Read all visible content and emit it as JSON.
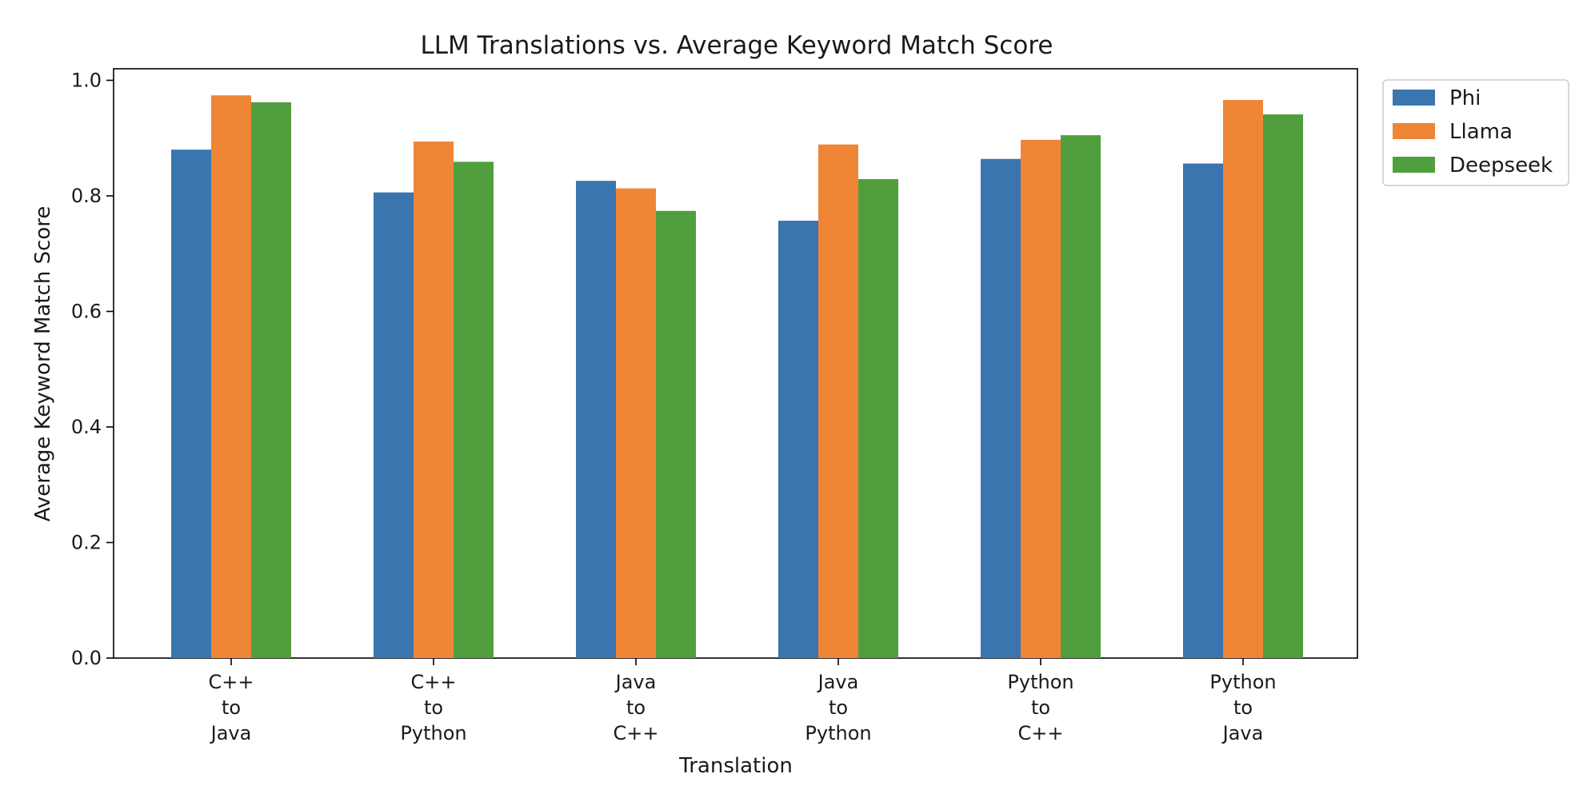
{
  "chart_data": {
    "type": "bar",
    "title": "LLM Translations vs. Average Keyword Match Score",
    "xlabel": "Translation",
    "ylabel": "Average Keyword Match Score",
    "categories": [
      [
        "C++",
        "to",
        "Java"
      ],
      [
        "C++",
        "to",
        "Python"
      ],
      [
        "Java",
        "to",
        "C++"
      ],
      [
        "Java",
        "to",
        "Python"
      ],
      [
        "Python",
        "to",
        "C++"
      ],
      [
        "Python",
        "to",
        "Java"
      ]
    ],
    "series": [
      {
        "name": "Phi",
        "color": "#3a75af",
        "values": [
          0.88,
          0.806,
          0.826,
          0.757,
          0.864,
          0.856
        ]
      },
      {
        "name": "Llama",
        "color": "#ef8636",
        "values": [
          0.974,
          0.894,
          0.813,
          0.889,
          0.897,
          0.966
        ]
      },
      {
        "name": "Deepseek",
        "color": "#519e3e",
        "values": [
          0.962,
          0.859,
          0.774,
          0.829,
          0.905,
          0.941
        ]
      }
    ],
    "ylim": [
      0,
      1.02
    ],
    "yticks": [
      "0.0",
      "0.2",
      "0.4",
      "0.6",
      "0.8",
      "1.0"
    ],
    "grid": false,
    "legend_position": "outside-top-right"
  }
}
